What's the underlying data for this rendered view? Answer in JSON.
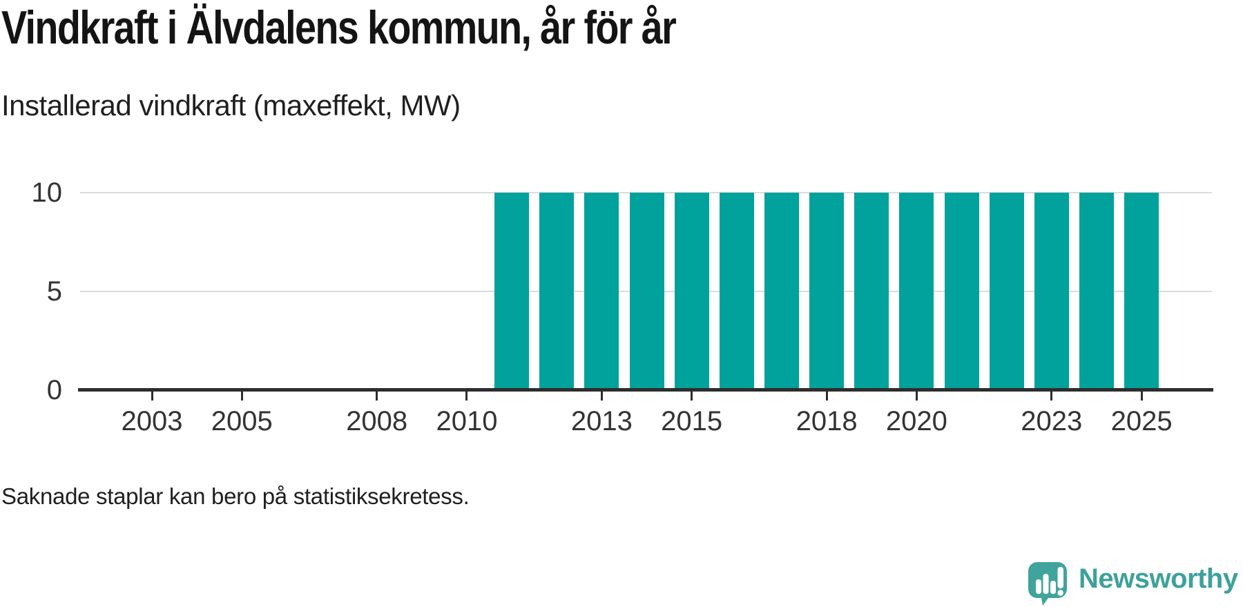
{
  "header": {
    "title": "Vindkraft i Älvdalens kommun, år för år",
    "subtitle": "Installerad vindkraft (maxeffekt, MW)"
  },
  "chart_data": {
    "type": "bar",
    "title": "Vindkraft i Älvdalens kommun, år för år",
    "subtitle": "Installerad vindkraft (maxeffekt, MW)",
    "xlabel": "",
    "ylabel": "",
    "x": [
      2011,
      2012,
      2013,
      2014,
      2015,
      2016,
      2017,
      2018,
      2019,
      2020,
      2021,
      2022,
      2023,
      2024,
      2025
    ],
    "values": [
      10,
      10,
      10,
      10,
      10,
      10,
      10,
      10,
      10,
      10,
      10,
      10,
      10,
      10,
      10
    ],
    "x_tick_labels": [
      "2003",
      "2005",
      "2008",
      "2010",
      "2013",
      "2015",
      "2018",
      "2020",
      "2023",
      "2025"
    ],
    "x_tick_years": [
      2003,
      2005,
      2008,
      2010,
      2013,
      2015,
      2018,
      2020,
      2023,
      2025
    ],
    "x_domain": [
      2001,
      2026
    ],
    "y_ticks": [
      0,
      5,
      10
    ],
    "ylim": [
      0,
      10
    ],
    "grid": true,
    "legend_position": "none",
    "bar_color": "#00a29b"
  },
  "footer": {
    "note": "Saknade staplar kan bero på statistiksekretess.",
    "brand": "Newsworthy"
  },
  "colors": {
    "bar": "#00a29b",
    "logo": "#40a49d",
    "axis": "#2d2d2d",
    "grid": "#dcdcdc"
  }
}
